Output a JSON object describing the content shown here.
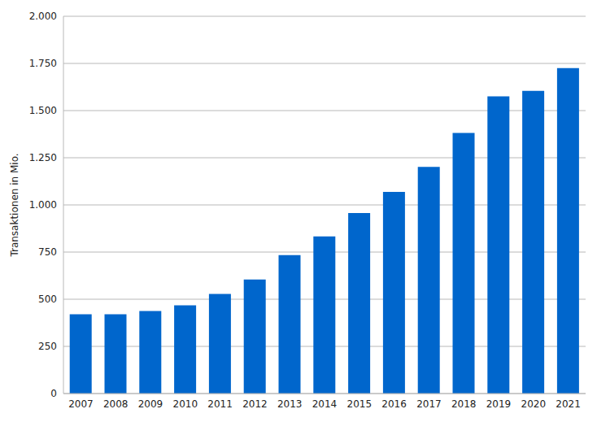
{
  "chart_data": {
    "type": "bar",
    "y_label": "Transaktionen in Mio.",
    "categories": [
      "2007",
      "2008",
      "2009",
      "2010",
      "2011",
      "2012",
      "2013",
      "2014",
      "2015",
      "2016",
      "2017",
      "2018",
      "2019",
      "2020",
      "2021"
    ],
    "values": [
      420,
      420,
      438,
      468,
      528,
      605,
      734,
      833,
      957,
      1069,
      1202,
      1382,
      1575,
      1605,
      1725
    ],
    "color": "#0066cc",
    "ylim": [
      0,
      2000
    ],
    "yticks": [
      0,
      250,
      500,
      750,
      {
        "value": 1000,
        "label": "1.000"
      },
      {
        "value": 1250,
        "label": "1.250"
      },
      {
        "value": 1500,
        "label": "1.500"
      },
      {
        "value": 1750,
        "label": "1.750"
      },
      {
        "value": 2000,
        "label": "2.000"
      }
    ],
    "grid": true
  }
}
